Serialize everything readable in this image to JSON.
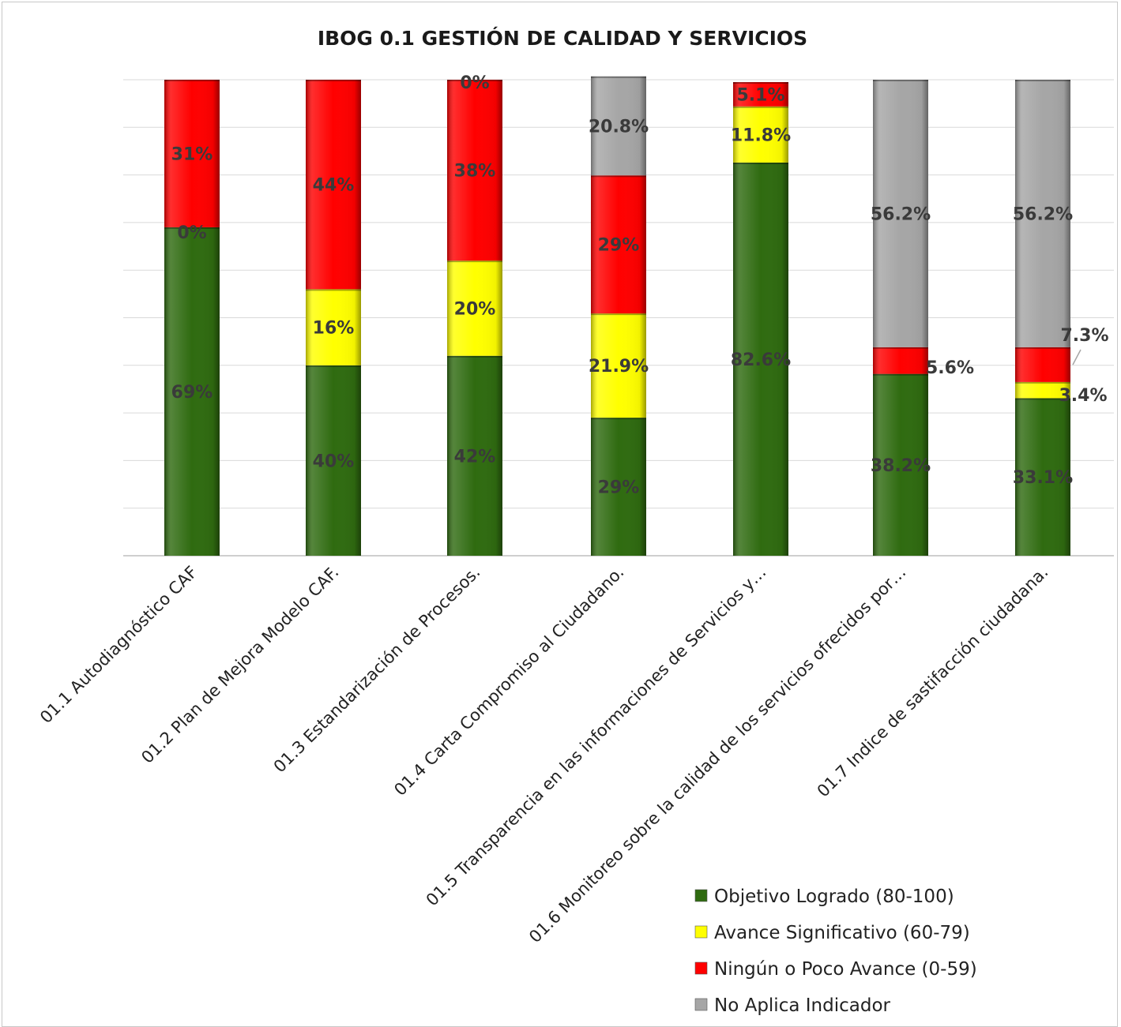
{
  "chart_data": {
    "type": "bar",
    "stacked": true,
    "title": "IBOG 0.1 GESTIÓN DE CALIDAD  Y SERVICIOS",
    "xlabel": "",
    "ylabel": "",
    "ylim": [
      0,
      100
    ],
    "grid": true,
    "legend_position": "bottom-right",
    "categories": [
      "01.1  Autodiagnóstico CAF",
      "01.2 Plan de Mejora Modelo CAF.",
      "01.3 Estandarización de Procesos.",
      "01.4 Carta Compromiso al Ciudadano.",
      "01.5 Transparencia en las informaciones de Servicios y…",
      "01.6 Monitoreo sobre la calidad de los servicios ofrecidos por…",
      "01.7 Indice de sastifacción ciudadana."
    ],
    "series": [
      {
        "name": "Objetivo Logrado (80-100)",
        "color": "#2f6b10",
        "values": [
          69,
          40,
          42,
          29,
          82.6,
          38.2,
          33.1
        ],
        "labels": [
          "69%",
          "40%",
          "42%",
          "29%",
          "82.6%",
          "38.2%",
          "33.1%"
        ]
      },
      {
        "name": "Avance Significativo (60-79)",
        "color": "#ffff00",
        "values": [
          0,
          16,
          20,
          21.9,
          11.8,
          0,
          3.4
        ],
        "labels": [
          "0%",
          "16%",
          "20%",
          "21.9%",
          "11.8%",
          "",
          "3.4%"
        ]
      },
      {
        "name": "Ningún o Poco Avance (0-59)",
        "color": "#ff0000",
        "values": [
          31,
          44,
          38,
          29,
          5.1,
          5.6,
          7.3
        ],
        "labels": [
          "31%",
          "44%",
          "38%",
          "29%",
          "5.1%",
          "5.6%",
          "7.3%"
        ]
      },
      {
        "name": "No Aplica Indicador",
        "color": "#a6a6a6",
        "values": [
          0,
          0,
          0,
          20.8,
          0,
          56.2,
          56.2
        ],
        "labels": [
          "",
          "",
          "",
          "20.8%",
          "",
          "56.2%",
          "56.2%"
        ]
      }
    ],
    "extra_labels": [
      {
        "category": 2,
        "text": "0%"
      }
    ]
  }
}
